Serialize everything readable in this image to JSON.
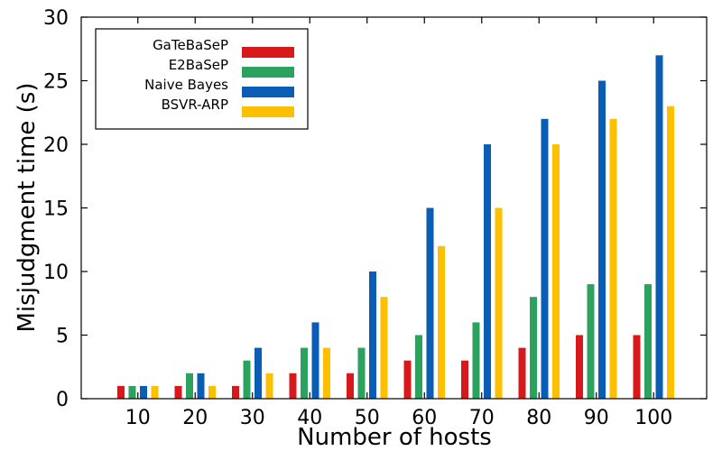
{
  "chart_data": {
    "type": "bar",
    "title": "",
    "xlabel": "Number of hosts",
    "ylabel": "Misjudgment time (s)",
    "ylim": [
      0,
      30
    ],
    "yticks": [
      0,
      5,
      10,
      15,
      20,
      25,
      30
    ],
    "grid": false,
    "legend_position": "top-left",
    "categories": [
      "10",
      "20",
      "30",
      "40",
      "50",
      "60",
      "70",
      "80",
      "90",
      "100"
    ],
    "series": [
      {
        "name": "GaTeBaSeP",
        "color": "#d7191c",
        "values": [
          1,
          1,
          1,
          2,
          2,
          3,
          3,
          4,
          5,
          5
        ]
      },
      {
        "name": "E2BaSeP",
        "color": "#2ca25f",
        "values": [
          1,
          2,
          3,
          4,
          4,
          5,
          6,
          8,
          9,
          9
        ]
      },
      {
        "name": "Naive Bayes",
        "color": "#0a5db5",
        "values": [
          1,
          2,
          4,
          6,
          10,
          15,
          20,
          22,
          25,
          27
        ]
      },
      {
        "name": "BSVR-ARP",
        "color": "#fcc000",
        "values": [
          1,
          1,
          2,
          4,
          8,
          12,
          15,
          20,
          22,
          23
        ]
      }
    ]
  }
}
